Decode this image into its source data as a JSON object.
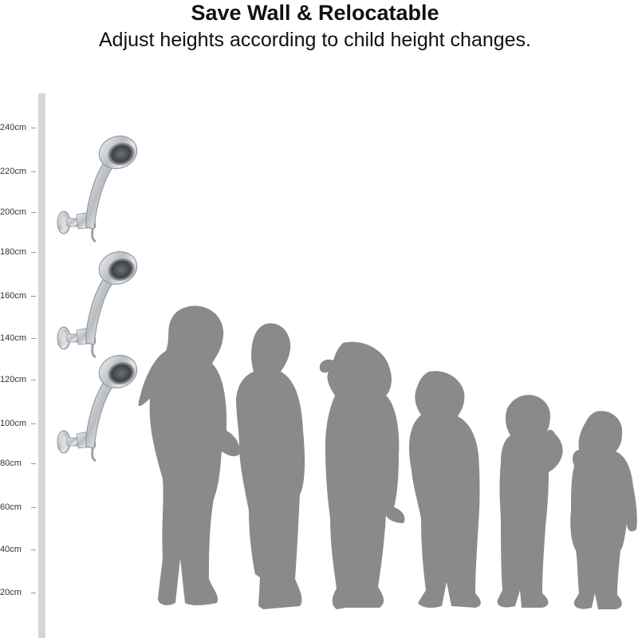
{
  "header": {
    "title": "Save Wall & Relocatable",
    "subtitle": "Adjust heights according to child height changes."
  },
  "ruler": {
    "unit": "cm",
    "ticks": [
      "240cm",
      "220cm",
      "200cm",
      "180cm",
      "160cm",
      "140cm",
      "120cm",
      "100cm",
      "80cm",
      "60cm",
      "40cm",
      "20cm"
    ]
  },
  "shower_heads": [
    {
      "icon": "shower-head-icon",
      "level": "high"
    },
    {
      "icon": "shower-head-icon",
      "level": "middle"
    },
    {
      "icon": "shower-head-icon",
      "level": "low"
    }
  ],
  "children": [
    {
      "icon": "child-silhouette-icon"
    },
    {
      "icon": "child-silhouette-icon"
    },
    {
      "icon": "child-silhouette-icon"
    },
    {
      "icon": "child-silhouette-icon"
    },
    {
      "icon": "child-silhouette-icon"
    },
    {
      "icon": "child-silhouette-icon"
    }
  ],
  "colors": {
    "silhouette": "#8a8a8a",
    "ruler": "#d6d6d6",
    "chrome": "#c9ccd0"
  }
}
